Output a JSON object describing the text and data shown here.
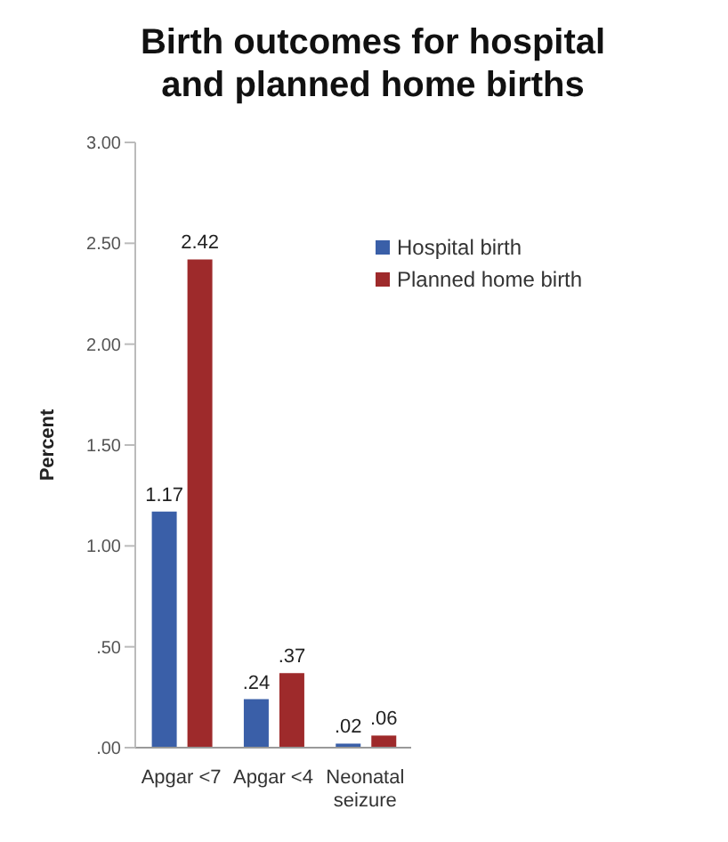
{
  "chart_data": {
    "type": "bar",
    "title": "Birth outcomes for hospital and planned home births",
    "ylabel": "Percent",
    "categories": [
      "Apgar <7",
      "Apgar <4",
      "Neonatal seizure"
    ],
    "series": [
      {
        "name": "Hospital birth",
        "color": "#3a5fa8",
        "values": [
          1.17,
          0.24,
          0.02
        ],
        "value_labels": [
          "1.17",
          ".24",
          ".02"
        ]
      },
      {
        "name": "Planned home birth",
        "color": "#9e2a2b",
        "values": [
          2.42,
          0.37,
          0.06
        ],
        "value_labels": [
          "2.42",
          ".37",
          ".06"
        ]
      }
    ],
    "ylim": [
      0,
      3
    ],
    "yticks": [
      {
        "value": 0,
        "label": ".00"
      },
      {
        "value": 0.5,
        "label": ".50"
      },
      {
        "value": 1,
        "label": "1.00"
      },
      {
        "value": 1.5,
        "label": "1.50"
      },
      {
        "value": 2,
        "label": "2.00"
      },
      {
        "value": 2.5,
        "label": "2.50"
      },
      {
        "value": 3,
        "label": "3.00"
      }
    ],
    "legend": "top right"
  }
}
